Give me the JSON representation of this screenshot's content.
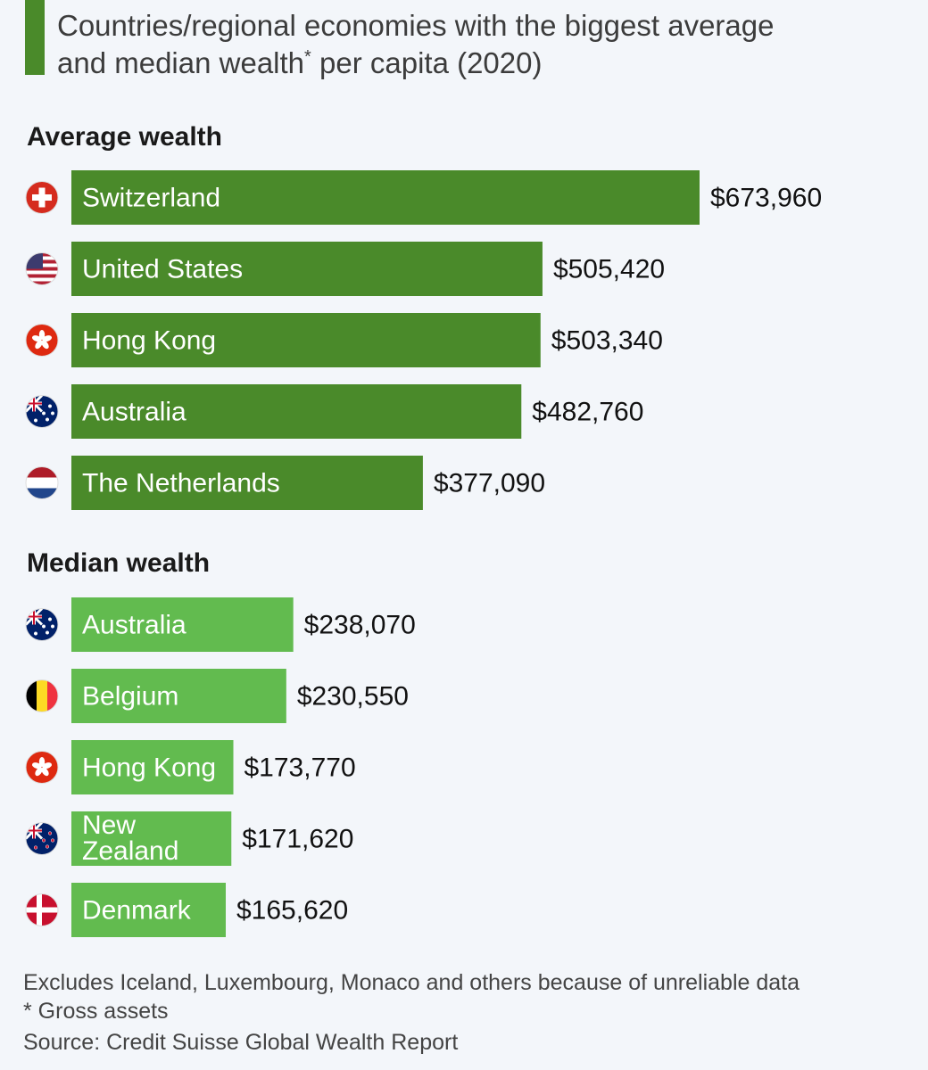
{
  "title": {
    "line1": "Countries/regional economies with the biggest average",
    "line2a": "and median wealth",
    "line2sup": "*",
    "line2b": " per capita (2020)"
  },
  "colors": {
    "average_bar": "#4a8a2a",
    "median_bar": "#62bb4f",
    "title_accent": "#4a8a2a"
  },
  "chart_data": [
    {
      "type": "bar",
      "orientation": "horizontal",
      "title": "Average wealth",
      "categories": [
        "Switzerland",
        "United States",
        "Hong Kong",
        "Australia",
        "The Netherlands"
      ],
      "values": [
        673960,
        505420,
        503340,
        482760,
        377090
      ],
      "value_labels": [
        "$673,960",
        "$505,420",
        "$503,340",
        "$482,760",
        "$377,090"
      ],
      "flags": [
        "switzerland-flag-icon",
        "usa-flag-icon",
        "hong-kong-flag-icon",
        "australia-flag-icon",
        "netherlands-flag-icon"
      ],
      "grid": false
    },
    {
      "type": "bar",
      "orientation": "horizontal",
      "title": "Median wealth",
      "categories": [
        "Australia",
        "Belgium",
        "Hong Kong",
        "New Zealand",
        "Denmark"
      ],
      "values": [
        238070,
        230550,
        173770,
        171620,
        165620
      ],
      "value_labels": [
        "$238,070",
        "$230,550",
        "$173,770",
        "$171,620",
        "$165,620"
      ],
      "flags": [
        "australia-flag-icon",
        "belgium-flag-icon",
        "hong-kong-flag-icon",
        "new-zealand-flag-icon",
        "denmark-flag-icon"
      ],
      "grid": false
    }
  ],
  "footer": {
    "note": "Excludes Iceland, Luxembourg, Monaco and others because of unreliable data",
    "asterisk": "* Gross assets",
    "source": "Source: Credit Suisse Global Wealth Report"
  }
}
